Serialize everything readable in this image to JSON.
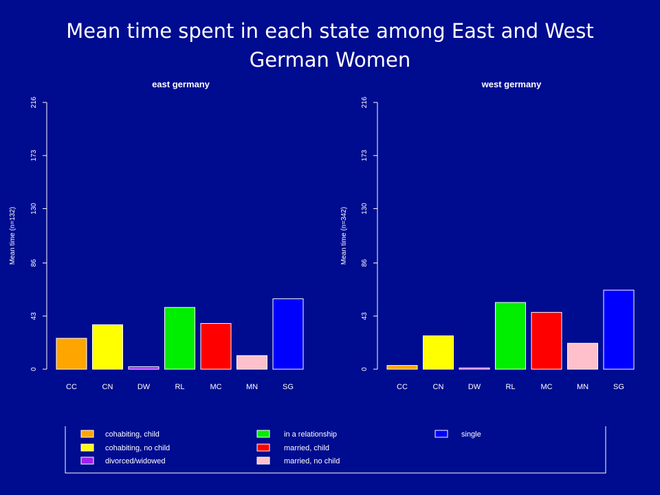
{
  "slide": {
    "title": "Mean time spent in each state among East and West German Women"
  },
  "chart_data": [
    {
      "type": "bar",
      "title": "east germany",
      "ylabel": "Mean time (n=132)",
      "xlabel": "",
      "ylim": [
        0,
        216
      ],
      "yticks": [
        0,
        43,
        86,
        130,
        173,
        216
      ],
      "categories": [
        "CC",
        "CN",
        "DW",
        "RL",
        "MC",
        "MN",
        "SG"
      ],
      "values": [
        25,
        36,
        2,
        50,
        37,
        11,
        57
      ],
      "colors": [
        "#ffa500",
        "#ffff00",
        "#a020f0",
        "#00ee00",
        "#ff0000",
        "#ffc0cb",
        "#0000ff"
      ],
      "grid": false
    },
    {
      "type": "bar",
      "title": "west germany",
      "ylabel": "Mean time (n=342)",
      "xlabel": "",
      "ylim": [
        0,
        216
      ],
      "yticks": [
        0,
        43,
        86,
        130,
        173,
        216
      ],
      "categories": [
        "CC",
        "CN",
        "DW",
        "RL",
        "MC",
        "MN",
        "SG"
      ],
      "values": [
        3,
        27,
        1,
        54,
        46,
        21,
        64
      ],
      "colors": [
        "#ffa500",
        "#ffff00",
        "#a020f0",
        "#00ee00",
        "#ff0000",
        "#ffc0cb",
        "#0000ff"
      ],
      "grid": false
    }
  ],
  "legend": {
    "placement": "bottom",
    "entries": [
      {
        "label": "cohabiting, child",
        "color": "#ffa500"
      },
      {
        "label": "cohabiting, no child",
        "color": "#ffff00"
      },
      {
        "label": "divorced/widowed",
        "color": "#a020f0"
      },
      {
        "label": "in a relationship",
        "color": "#00ee00"
      },
      {
        "label": "married, child",
        "color": "#ff0000"
      },
      {
        "label": "married, no child",
        "color": "#ffc0cb"
      },
      {
        "label": "single",
        "color": "#0000ff"
      }
    ]
  }
}
